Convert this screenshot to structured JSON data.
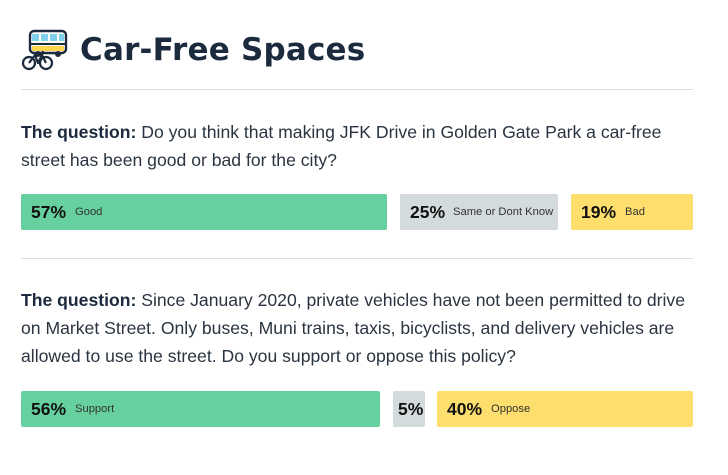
{
  "header": {
    "title": "Car-Free Spaces",
    "icon": "bus-and-bicycle-icon"
  },
  "colors": {
    "good": "#66d19e",
    "neutral": "#d3dbdc",
    "bad": "#fede6d",
    "title": "#1b2a3c"
  },
  "questions": [
    {
      "lead": "The question:",
      "text": " Do you think that making JFK Drive in Golden Gate Park a car-free street has been good or bad for the city?",
      "results": [
        {
          "pct": "57%",
          "label": "Good",
          "value": 57,
          "tone": "good"
        },
        {
          "pct": "25%",
          "label": "Same or Dont Know",
          "value": 25,
          "tone": "neutral"
        },
        {
          "pct": "19%",
          "label": "Bad",
          "value": 19,
          "tone": "bad"
        }
      ]
    },
    {
      "lead": "The question:",
      "text": " Since January 2020, private vehicles have not been permitted to drive on Market Street. Only buses, Muni trains, taxis, bicyclists, and delivery vehicles are allowed to use the street. Do you support or oppose this policy?",
      "results": [
        {
          "pct": "56%",
          "label": "Support",
          "value": 56,
          "tone": "good"
        },
        {
          "pct": "5%",
          "label": "",
          "value": 5,
          "tone": "neutral"
        },
        {
          "pct": "40%",
          "label": "Oppose",
          "value": 40,
          "tone": "bad"
        }
      ]
    }
  ]
}
